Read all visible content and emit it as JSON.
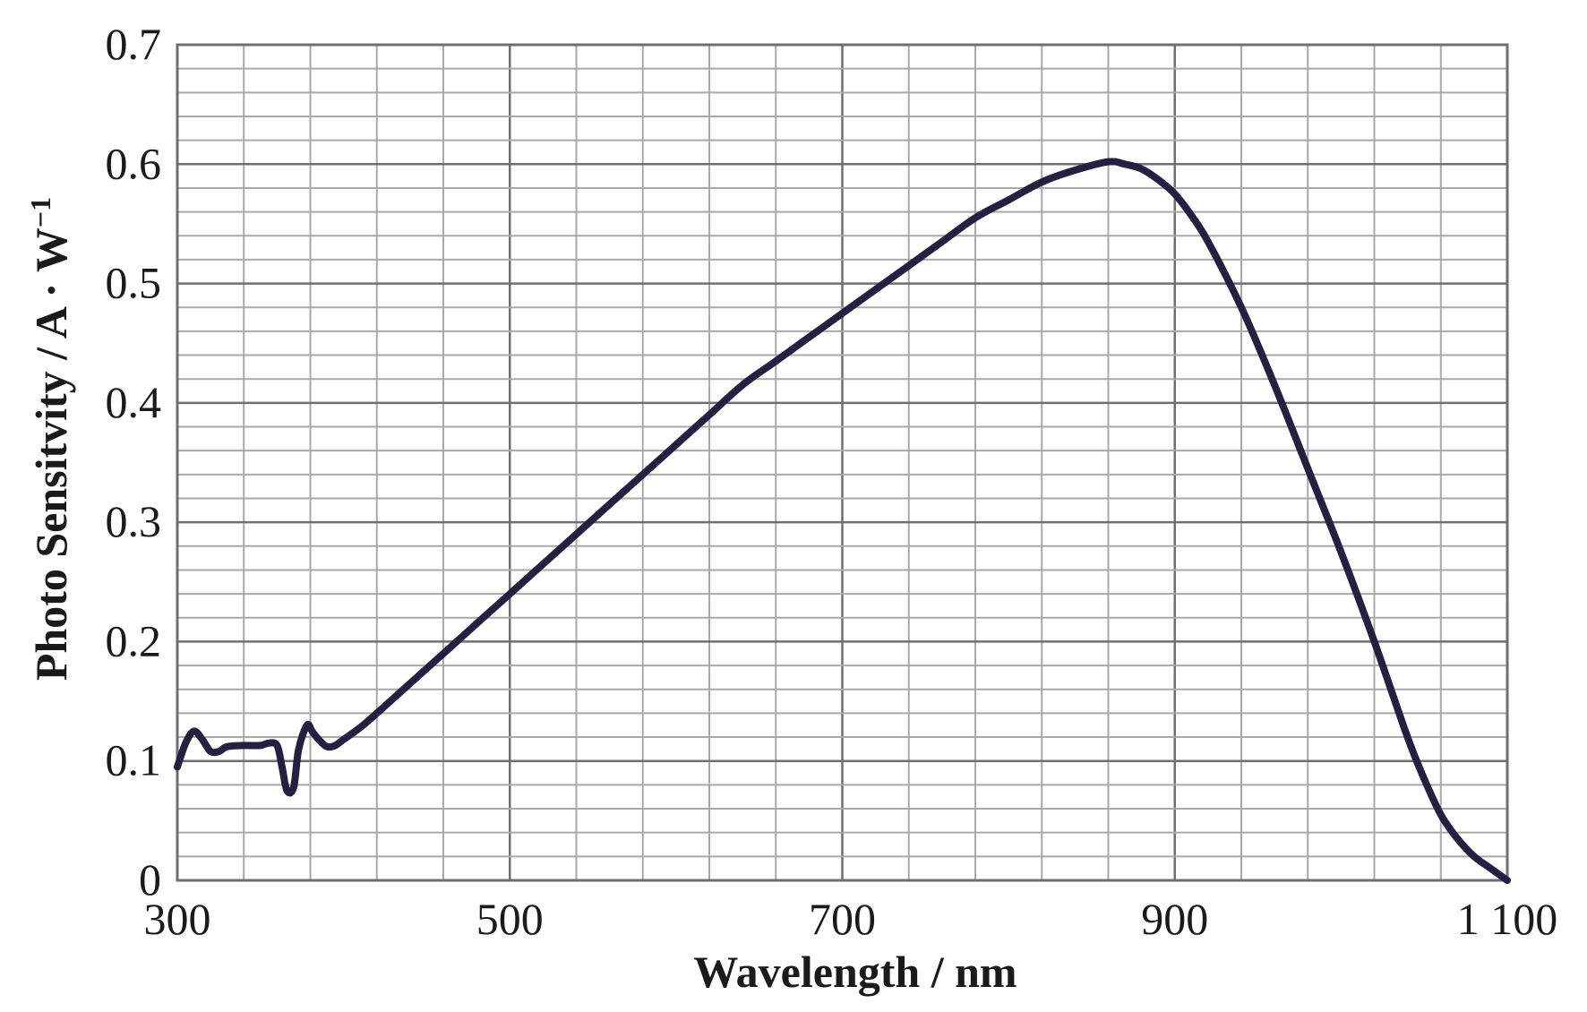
{
  "chart_data": {
    "type": "line",
    "xlabel": "Wavelength / nm",
    "ylabel": "Photo Sensitvity  / A · W",
    "ylabel_superscript": "−1",
    "xlim": [
      300,
      1100
    ],
    "ylim": [
      0,
      0.7
    ],
    "x_ticks": [
      300,
      500,
      700,
      900,
      1100
    ],
    "x_tick_labels": [
      "300",
      "500",
      "700",
      "900",
      "1 100"
    ],
    "y_ticks": [
      0,
      0.1,
      0.2,
      0.3,
      0.4,
      0.5,
      0.6,
      0.7
    ],
    "y_tick_labels": [
      "0",
      "0.1",
      "0.2",
      "0.3",
      "0.4",
      "0.5",
      "0.6",
      "0.7"
    ],
    "grid": true,
    "x_minor_step": 40,
    "y_minor_step": 0.02,
    "colors": {
      "line": "#232040",
      "grid": "#a9a9a9",
      "frame": "#6f6f73"
    },
    "series": [
      {
        "x": [
          300,
          305,
          310,
          315,
          320,
          325,
          330,
          340,
          350,
          355,
          360,
          363,
          366,
          370,
          373,
          378,
          381,
          385,
          390,
          395,
          400,
          410,
          420,
          440,
          460,
          480,
          500,
          520,
          540,
          560,
          580,
          600,
          620,
          640,
          660,
          680,
          700,
          720,
          740,
          760,
          780,
          800,
          820,
          840,
          860,
          870,
          880,
          890,
          900,
          910,
          920,
          940,
          960,
          980,
          1000,
          1020,
          1040,
          1050,
          1060,
          1070,
          1080,
          1090,
          1100
        ],
        "y": [
          0.095,
          0.115,
          0.125,
          0.118,
          0.108,
          0.108,
          0.112,
          0.113,
          0.113,
          0.115,
          0.113,
          0.095,
          0.075,
          0.078,
          0.11,
          0.13,
          0.125,
          0.118,
          0.112,
          0.113,
          0.118,
          0.128,
          0.14,
          0.165,
          0.19,
          0.215,
          0.24,
          0.265,
          0.29,
          0.315,
          0.34,
          0.365,
          0.39,
          0.415,
          0.435,
          0.455,
          0.475,
          0.495,
          0.515,
          0.535,
          0.555,
          0.57,
          0.585,
          0.595,
          0.602,
          0.6,
          0.596,
          0.587,
          0.575,
          0.557,
          0.535,
          0.48,
          0.415,
          0.345,
          0.275,
          0.2,
          0.12,
          0.085,
          0.055,
          0.035,
          0.02,
          0.01,
          0.0
        ]
      }
    ]
  }
}
